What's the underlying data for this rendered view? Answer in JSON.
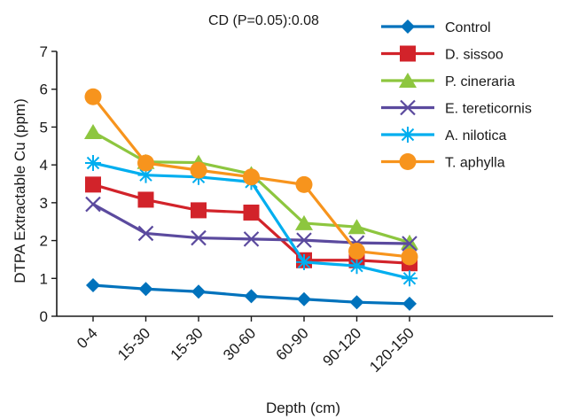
{
  "chart_data": {
    "type": "line",
    "title": "",
    "annotation": "CD (P=0.05):0.08",
    "xlabel": "Depth (cm)",
    "ylabel": "DTPA Extractable Cu (ppm)",
    "categories": [
      "0-4",
      "15-30",
      "15-30",
      "30-60",
      "60-90",
      "90-120",
      "120-150"
    ],
    "ylim": [
      0,
      7
    ],
    "yticks": [
      "0",
      "1",
      "2",
      "3",
      "4",
      "5",
      "6",
      "7"
    ],
    "grid": false,
    "legend_position": "top-right",
    "series": [
      {
        "name": "Control",
        "color": "#0072bc",
        "marker": "diamond",
        "values": [
          0.82,
          0.72,
          0.65,
          0.53,
          0.45,
          0.37,
          0.33
        ]
      },
      {
        "name": "D. sissoo",
        "color": "#d2232a",
        "marker": "square",
        "values": [
          3.48,
          3.08,
          2.8,
          2.74,
          1.48,
          1.48,
          1.4
        ]
      },
      {
        "name": "P. cineraria",
        "color": "#8dc63f",
        "marker": "triangle",
        "values": [
          4.87,
          4.08,
          4.06,
          3.76,
          2.46,
          2.36,
          1.95
        ]
      },
      {
        "name": "E. tereticornis",
        "color": "#5b4a9e",
        "marker": "x",
        "values": [
          2.96,
          2.19,
          2.07,
          2.04,
          2.01,
          1.94,
          1.92
        ]
      },
      {
        "name": "A. nilotica",
        "color": "#00aeef",
        "marker": "star",
        "values": [
          4.05,
          3.73,
          3.68,
          3.55,
          1.43,
          1.33,
          1.0
        ]
      },
      {
        "name": "T. aphylla",
        "color": "#f7941d",
        "marker": "circle",
        "values": [
          5.8,
          4.05,
          3.86,
          3.68,
          3.48,
          1.72,
          1.57
        ]
      }
    ]
  }
}
